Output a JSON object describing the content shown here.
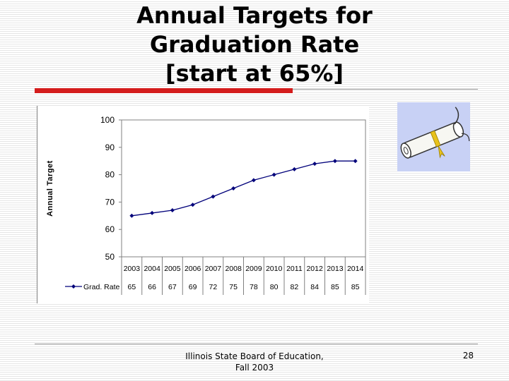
{
  "slide": {
    "title_lines": [
      "Annual Targets for",
      "Graduation Rate",
      "[start at 65%]"
    ],
    "footer_lines": [
      "Illinois State Board of Education,",
      "Fall 2003"
    ],
    "page_number": "28"
  },
  "colors": {
    "accent_red": "#d41c1c",
    "series_line": "#00007a",
    "plot_border": "#808080",
    "clipart_bg": "#c8d1f5"
  },
  "clipart_icon": "diploma-scroll-icon",
  "chart_data": {
    "type": "line",
    "title": "",
    "xlabel": "",
    "ylabel": "Annual Target",
    "categories": [
      "2003",
      "2004",
      "2005",
      "2006",
      "2007",
      "2008",
      "2009",
      "2010",
      "2011",
      "2012",
      "2013",
      "2014"
    ],
    "series": [
      {
        "name": "Grad. Rate",
        "values": [
          65,
          66,
          67,
          69,
          72,
          75,
          78,
          80,
          82,
          84,
          85,
          85
        ]
      }
    ],
    "ylim": [
      50,
      100
    ],
    "yticks": [
      50,
      60,
      70,
      80,
      90,
      100
    ],
    "grid": false,
    "legend": "data-table-bottom",
    "marker": "diamond"
  }
}
